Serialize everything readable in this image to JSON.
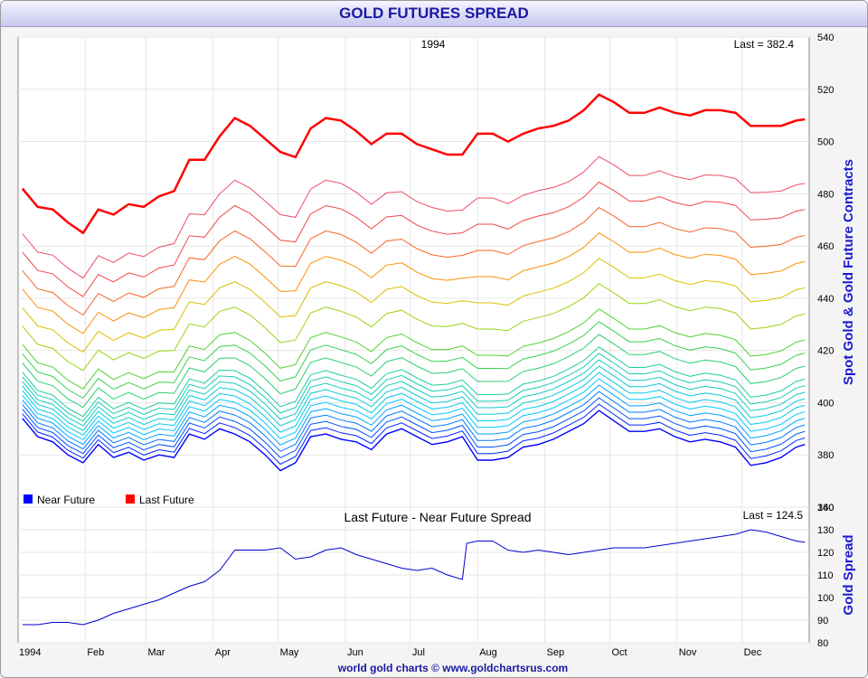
{
  "title": "GOLD FUTURES SPREAD",
  "credit": "world gold charts © www.goldchartsrus.com",
  "chart_data": [
    {
      "type": "line",
      "year_label": "1994",
      "last_label": "Last = 382.4",
      "ylabel": "Spot Gold & Gold Future Contracts",
      "ylim": [
        360,
        540
      ],
      "yticks": [
        360,
        380,
        400,
        420,
        440,
        460,
        480,
        500,
        520,
        540
      ],
      "grid": true,
      "legend_position": "bottom-left",
      "legend": [
        {
          "label": "Near Future",
          "color": "#0000ff"
        },
        {
          "label": "Last Future",
          "color": "#ff0000"
        }
      ],
      "contract_offsets_approx": [
        0,
        2.5,
        5,
        7.5,
        10,
        12.5,
        15,
        17.5,
        20,
        22.5,
        25,
        30,
        35,
        40,
        50,
        60,
        70,
        80,
        90,
        100,
        124.5
      ],
      "near_future_weekly": [
        {
          "x": "1994-01-03",
          "y": 394
        },
        {
          "x": "1994-01-10",
          "y": 387
        },
        {
          "x": "1994-01-17",
          "y": 385
        },
        {
          "x": "1994-01-24",
          "y": 380
        },
        {
          "x": "1994-01-31",
          "y": 377
        },
        {
          "x": "1994-02-07",
          "y": 384
        },
        {
          "x": "1994-02-14",
          "y": 379
        },
        {
          "x": "1994-02-21",
          "y": 381
        },
        {
          "x": "1994-02-28",
          "y": 378
        },
        {
          "x": "1994-03-07",
          "y": 380
        },
        {
          "x": "1994-03-14",
          "y": 379
        },
        {
          "x": "1994-03-21",
          "y": 388
        },
        {
          "x": "1994-03-28",
          "y": 386
        },
        {
          "x": "1994-04-04",
          "y": 390
        },
        {
          "x": "1994-04-11",
          "y": 388
        },
        {
          "x": "1994-04-18",
          "y": 385
        },
        {
          "x": "1994-04-25",
          "y": 380
        },
        {
          "x": "1994-05-02",
          "y": 374
        },
        {
          "x": "1994-05-09",
          "y": 377
        },
        {
          "x": "1994-05-16",
          "y": 387
        },
        {
          "x": "1994-05-23",
          "y": 388
        },
        {
          "x": "1994-05-30",
          "y": 386
        },
        {
          "x": "1994-06-06",
          "y": 385
        },
        {
          "x": "1994-06-13",
          "y": 382
        },
        {
          "x": "1994-06-20",
          "y": 388
        },
        {
          "x": "1994-06-27",
          "y": 390
        },
        {
          "x": "1994-07-04",
          "y": 387
        },
        {
          "x": "1994-07-11",
          "y": 384
        },
        {
          "x": "1994-07-18",
          "y": 385
        },
        {
          "x": "1994-07-25",
          "y": 387
        },
        {
          "x": "1994-08-01",
          "y": 378
        },
        {
          "x": "1994-08-08",
          "y": 378
        },
        {
          "x": "1994-08-15",
          "y": 379
        },
        {
          "x": "1994-08-22",
          "y": 383
        },
        {
          "x": "1994-08-29",
          "y": 384
        },
        {
          "x": "1994-09-05",
          "y": 386
        },
        {
          "x": "1994-09-12",
          "y": 389
        },
        {
          "x": "1994-09-19",
          "y": 392
        },
        {
          "x": "1994-09-26",
          "y": 397
        },
        {
          "x": "1994-10-03",
          "y": 393
        },
        {
          "x": "1994-10-10",
          "y": 389
        },
        {
          "x": "1994-10-17",
          "y": 389
        },
        {
          "x": "1994-10-24",
          "y": 390
        },
        {
          "x": "1994-10-31",
          "y": 387
        },
        {
          "x": "1994-11-07",
          "y": 385
        },
        {
          "x": "1994-11-14",
          "y": 386
        },
        {
          "x": "1994-11-21",
          "y": 385
        },
        {
          "x": "1994-11-28",
          "y": 383
        },
        {
          "x": "1994-12-05",
          "y": 376
        },
        {
          "x": "1994-12-12",
          "y": 377
        },
        {
          "x": "1994-12-19",
          "y": 379
        },
        {
          "x": "1994-12-26",
          "y": 383
        },
        {
          "x": "1994-12-30",
          "y": 384
        }
      ]
    },
    {
      "type": "line",
      "title": "Last Future - Near Future Spread",
      "last_label": "Last = 124.5",
      "ylabel": "Gold Spread",
      "ylim": [
        80,
        140
      ],
      "yticks": [
        80,
        90,
        100,
        110,
        120,
        130,
        140
      ],
      "x_ticks": [
        "1994",
        "Feb",
        "Mar",
        "Apr",
        "May",
        "Jun",
        "Jul",
        "Aug",
        "Sep",
        "Oct",
        "Nov",
        "Dec"
      ],
      "series": [
        {
          "color": "#0000cc",
          "data": [
            {
              "x": "1994-01-03",
              "y": 88
            },
            {
              "x": "1994-01-10",
              "y": 88
            },
            {
              "x": "1994-01-17",
              "y": 89
            },
            {
              "x": "1994-01-24",
              "y": 89
            },
            {
              "x": "1994-01-31",
              "y": 88
            },
            {
              "x": "1994-02-07",
              "y": 90
            },
            {
              "x": "1994-02-14",
              "y": 93
            },
            {
              "x": "1994-02-21",
              "y": 95
            },
            {
              "x": "1994-02-28",
              "y": 97
            },
            {
              "x": "1994-03-07",
              "y": 99
            },
            {
              "x": "1994-03-14",
              "y": 102
            },
            {
              "x": "1994-03-21",
              "y": 105
            },
            {
              "x": "1994-03-28",
              "y": 107
            },
            {
              "x": "1994-04-04",
              "y": 112
            },
            {
              "x": "1994-04-11",
              "y": 121
            },
            {
              "x": "1994-04-18",
              "y": 121
            },
            {
              "x": "1994-04-25",
              "y": 121
            },
            {
              "x": "1994-05-02",
              "y": 122
            },
            {
              "x": "1994-05-09",
              "y": 117
            },
            {
              "x": "1994-05-16",
              "y": 118
            },
            {
              "x": "1994-05-23",
              "y": 121
            },
            {
              "x": "1994-05-30",
              "y": 122
            },
            {
              "x": "1994-06-06",
              "y": 119
            },
            {
              "x": "1994-06-13",
              "y": 117
            },
            {
              "x": "1994-06-20",
              "y": 115
            },
            {
              "x": "1994-06-27",
              "y": 113
            },
            {
              "x": "1994-07-04",
              "y": 112
            },
            {
              "x": "1994-07-11",
              "y": 113
            },
            {
              "x": "1994-07-18",
              "y": 110
            },
            {
              "x": "1994-07-25",
              "y": 108
            },
            {
              "x": "1994-07-27",
              "y": 124
            },
            {
              "x": "1994-08-01",
              "y": 125
            },
            {
              "x": "1994-08-08",
              "y": 125
            },
            {
              "x": "1994-08-15",
              "y": 121
            },
            {
              "x": "1994-08-22",
              "y": 120
            },
            {
              "x": "1994-08-29",
              "y": 121
            },
            {
              "x": "1994-09-05",
              "y": 120
            },
            {
              "x": "1994-09-12",
              "y": 119
            },
            {
              "x": "1994-09-19",
              "y": 120
            },
            {
              "x": "1994-09-26",
              "y": 121
            },
            {
              "x": "1994-10-03",
              "y": 122
            },
            {
              "x": "1994-10-10",
              "y": 122
            },
            {
              "x": "1994-10-17",
              "y": 122
            },
            {
              "x": "1994-10-24",
              "y": 123
            },
            {
              "x": "1994-10-31",
              "y": 124
            },
            {
              "x": "1994-11-07",
              "y": 125
            },
            {
              "x": "1994-11-14",
              "y": 126
            },
            {
              "x": "1994-11-21",
              "y": 127
            },
            {
              "x": "1994-11-28",
              "y": 128
            },
            {
              "x": "1994-12-05",
              "y": 130
            },
            {
              "x": "1994-12-12",
              "y": 129
            },
            {
              "x": "1994-12-19",
              "y": 127
            },
            {
              "x": "1994-12-26",
              "y": 125
            },
            {
              "x": "1994-12-30",
              "y": 124.5
            }
          ]
        }
      ]
    }
  ]
}
